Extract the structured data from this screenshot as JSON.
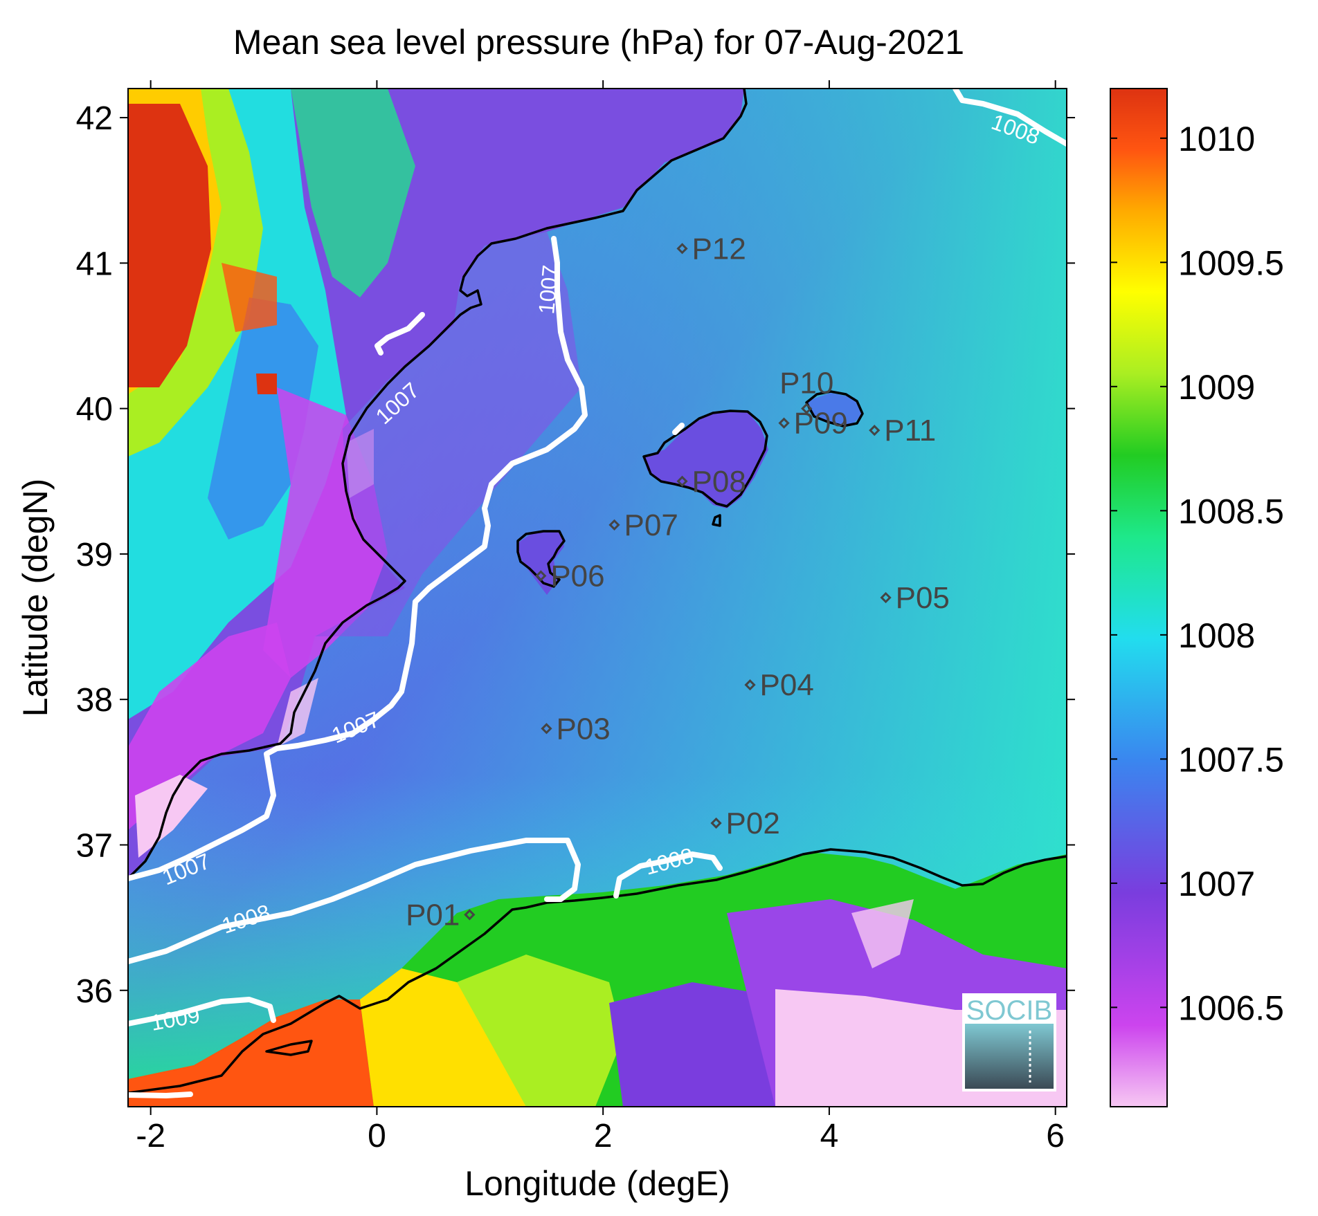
{
  "title": "Mean sea level pressure (hPa) for 07-Aug-2021",
  "xlabel": "Longitude (degE)",
  "ylabel": "Latitude (degN)",
  "x_ticks": [
    "-2",
    "0",
    "2",
    "4",
    "6"
  ],
  "y_ticks": [
    "42",
    "41",
    "40",
    "39",
    "38",
    "37",
    "36"
  ],
  "colorbar_ticks": [
    "1010",
    "1009.5",
    "1009",
    "1008.5",
    "1008",
    "1007.5",
    "1007",
    "1006.5"
  ],
  "logo_text": "SOCIB",
  "colors": {
    "coast": "#000000",
    "contour": "#ffffff",
    "marker": "#444444"
  },
  "colormap": [
    "#f7c8f3",
    "#cc44ee",
    "#7a3dde",
    "#3a86ef",
    "#22ddee",
    "#1ee88a",
    "#22cc22",
    "#aaee22",
    "#ffff00",
    "#ffaa00",
    "#ff5511",
    "#dd3311"
  ],
  "map_data": {
    "type": "heatmap",
    "variable": "Mean sea level pressure",
    "units": "hPa",
    "date": "07-Aug-2021",
    "lon_range": [
      -2.2,
      6.1
    ],
    "lat_range": [
      35.2,
      42.2
    ],
    "colorbar_range": [
      1006.1,
      1010.2
    ],
    "contour_levels": [
      "1007",
      "1008",
      "1009"
    ],
    "points": [
      {
        "label": "P01",
        "lon": 0.82,
        "lat": 36.52
      },
      {
        "label": "P02",
        "lon": 3.0,
        "lat": 37.15
      },
      {
        "label": "P03",
        "lon": 1.5,
        "lat": 37.8
      },
      {
        "label": "P04",
        "lon": 3.3,
        "lat": 38.1
      },
      {
        "label": "P05",
        "lon": 4.5,
        "lat": 38.7
      },
      {
        "label": "P06",
        "lon": 1.45,
        "lat": 38.85
      },
      {
        "label": "P07",
        "lon": 2.1,
        "lat": 39.2
      },
      {
        "label": "P08",
        "lon": 2.7,
        "lat": 39.5
      },
      {
        "label": "P09",
        "lon": 3.6,
        "lat": 39.9
      },
      {
        "label": "P10",
        "lon": 3.8,
        "lat": 40.0
      },
      {
        "label": "P11",
        "lon": 4.4,
        "lat": 39.85
      },
      {
        "label": "P12",
        "lon": 2.7,
        "lat": 41.1
      }
    ]
  }
}
